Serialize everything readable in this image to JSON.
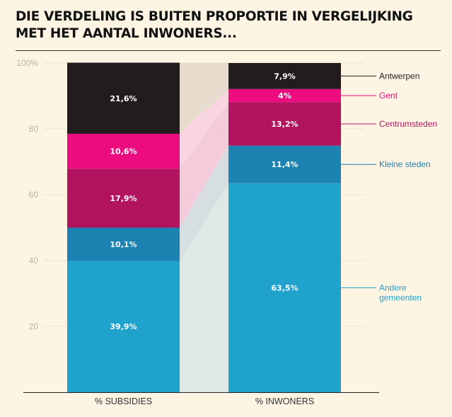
{
  "title": "DIE VERDELING IS BUITEN PROPORTIE IN VERGELIJKING MET HET AANTAL INWONERS...",
  "chart_data": {
    "type": "bar",
    "stacked": true,
    "categories": [
      "% SUBSIDIES",
      "% INWONERS"
    ],
    "ylim": [
      0,
      100
    ],
    "yticks": [
      {
        "value": 20,
        "label": "20"
      },
      {
        "value": 40,
        "label": "40"
      },
      {
        "value": 60,
        "label": "60"
      },
      {
        "value": 80,
        "label": "80"
      },
      {
        "value": 100,
        "label": "100%"
      }
    ],
    "grid": true,
    "legend_position": "right",
    "series": [
      {
        "name": "Andere gemeenten",
        "label_lines": [
          "Andere",
          "gemeenten"
        ],
        "color": "#1fa3cc",
        "values": [
          39.9,
          63.5
        ],
        "labels": [
          "39,9%",
          "63,5%"
        ]
      },
      {
        "name": "Kleine steden",
        "label_lines": [
          "Kleine steden"
        ],
        "color": "#1b82b1",
        "values": [
          10.1,
          11.4
        ],
        "labels": [
          "10,1%",
          "11,4%"
        ]
      },
      {
        "name": "Centrumsteden",
        "label_lines": [
          "Centrumsteden"
        ],
        "color": "#b1135f",
        "values": [
          17.9,
          13.2
        ],
        "labels": [
          "17,9%",
          "13,2%"
        ]
      },
      {
        "name": "Gent",
        "label_lines": [
          "Gent"
        ],
        "color": "#ed0c80",
        "values": [
          10.6,
          4
        ],
        "labels": [
          "10,6%",
          "4%"
        ]
      },
      {
        "name": "Antwerpen",
        "label_lines": [
          "Antwerpen"
        ],
        "color": "#231c1f",
        "legend_color": "#222222",
        "values": [
          21.6,
          7.9
        ],
        "labels": [
          "21,6%",
          "7,9%"
        ]
      }
    ]
  }
}
